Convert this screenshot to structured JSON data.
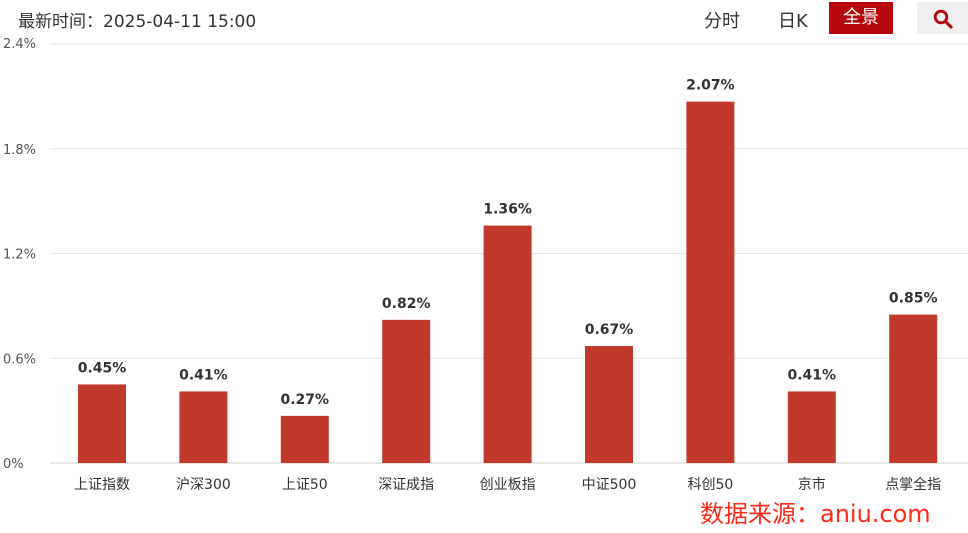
{
  "header": {
    "update_time": "最新时间：2025-04-11 15:00",
    "tabs": [
      "分时",
      "日K",
      "全景"
    ],
    "active_tab": "全景",
    "search_icon": "search-icon"
  },
  "source_note": "数据来源：aniu.com",
  "colors": {
    "bar": "#c0392b",
    "active_tab_bg": "#b5070c",
    "grid": "#e5e5e5",
    "source_note": "#ff2a1a"
  },
  "chart_data": {
    "type": "bar",
    "categories": [
      "上证指数",
      "沪深300",
      "上证50",
      "深证成指",
      "创业板指",
      "中证500",
      "科创50",
      "京市",
      "点掌全指"
    ],
    "values": [
      0.45,
      0.41,
      0.27,
      0.82,
      1.36,
      0.67,
      2.07,
      0.41,
      0.85
    ],
    "data_labels": [
      "0.45%",
      "0.41%",
      "0.27%",
      "0.82%",
      "1.36%",
      "0.67%",
      "2.07%",
      "0.41%",
      "0.85%"
    ],
    "y_ticks": [
      0,
      0.6,
      1.2,
      1.8,
      2.4
    ],
    "y_tick_labels": [
      "0%",
      "0.6%",
      "1.2%",
      "1.8%",
      "2.4%"
    ],
    "ylim": [
      0,
      2.4
    ],
    "grid": true,
    "title": "",
    "xlabel": "",
    "ylabel": ""
  }
}
